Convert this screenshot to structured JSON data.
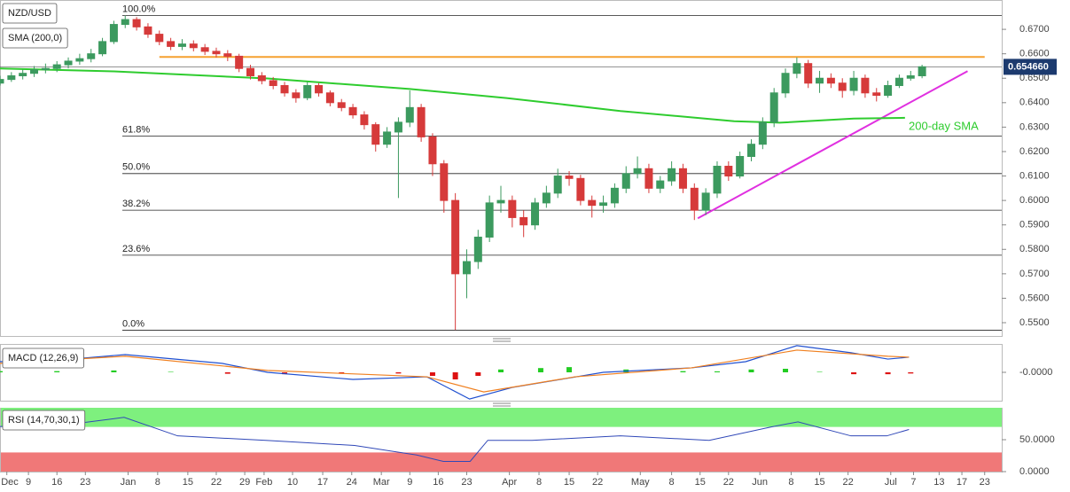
{
  "chart_data": [
    {
      "type": "candlestick",
      "title": "NZD/USD",
      "indicator_label": "SMA (200,0)",
      "up_color": "#3c9a5f",
      "down_color": "#d63a3a",
      "x": [
        0,
        2,
        4,
        6,
        8,
        10,
        12,
        14,
        16,
        18,
        20,
        22,
        24,
        26,
        28,
        30,
        32,
        34,
        36,
        38,
        40,
        42,
        44,
        46,
        48,
        50,
        52,
        54,
        56,
        58,
        60,
        62,
        64,
        66,
        68,
        70,
        72,
        74,
        76,
        78,
        80,
        82,
        84,
        86,
        88,
        90,
        92,
        94,
        96,
        98,
        100,
        102,
        104,
        106,
        108,
        110,
        112,
        114,
        116,
        118,
        120,
        122,
        124,
        126,
        128,
        130,
        132,
        134,
        136,
        138,
        140,
        142,
        144,
        146,
        148,
        150,
        152,
        154,
        156,
        158,
        160,
        162
      ],
      "open": [
        0.648,
        0.6495,
        0.651,
        0.652,
        0.6535,
        0.654,
        0.6555,
        0.657,
        0.658,
        0.66,
        0.665,
        0.672,
        0.674,
        0.671,
        0.668,
        0.665,
        0.663,
        0.664,
        0.6625,
        0.661,
        0.66,
        0.659,
        0.654,
        0.651,
        0.649,
        0.647,
        0.644,
        0.642,
        0.647,
        0.644,
        0.64,
        0.638,
        0.635,
        0.631,
        0.623,
        0.628,
        0.632,
        0.638,
        0.626,
        0.615,
        0.6,
        0.57,
        0.575,
        0.585,
        0.599,
        0.6,
        0.593,
        0.59,
        0.599,
        0.603,
        0.61,
        0.609,
        0.6,
        0.598,
        0.599,
        0.605,
        0.611,
        0.613,
        0.605,
        0.608,
        0.613,
        0.605,
        0.596,
        0.603,
        0.614,
        0.61,
        0.618,
        0.623,
        0.632,
        0.644,
        0.652,
        0.656,
        0.648,
        0.65,
        0.648,
        0.645,
        0.65,
        0.644,
        0.643,
        0.647,
        0.65,
        0.651
      ],
      "high": [
        0.651,
        0.6525,
        0.6535,
        0.655,
        0.656,
        0.657,
        0.6585,
        0.66,
        0.662,
        0.6665,
        0.6735,
        0.6756,
        0.675,
        0.6725,
        0.6695,
        0.6665,
        0.666,
        0.6655,
        0.664,
        0.6625,
        0.6615,
        0.66,
        0.6555,
        0.6525,
        0.6505,
        0.6485,
        0.6455,
        0.6485,
        0.648,
        0.645,
        0.6415,
        0.6395,
        0.6365,
        0.632,
        0.63,
        0.634,
        0.645,
        0.6395,
        0.6275,
        0.6165,
        0.603,
        0.58,
        0.588,
        0.602,
        0.606,
        0.602,
        0.596,
        0.601,
        0.606,
        0.613,
        0.612,
        0.6105,
        0.602,
        0.602,
        0.607,
        0.614,
        0.618,
        0.615,
        0.61,
        0.616,
        0.615,
        0.607,
        0.605,
        0.616,
        0.616,
        0.62,
        0.625,
        0.634,
        0.646,
        0.654,
        0.6585,
        0.6575,
        0.653,
        0.652,
        0.65,
        0.653,
        0.6515,
        0.646,
        0.649,
        0.6515,
        0.653,
        0.6555
      ],
      "low": [
        0.647,
        0.6485,
        0.6495,
        0.6505,
        0.652,
        0.6525,
        0.654,
        0.6555,
        0.6565,
        0.659,
        0.664,
        0.6705,
        0.6695,
        0.6665,
        0.6635,
        0.6615,
        0.6615,
        0.661,
        0.6595,
        0.6585,
        0.657,
        0.6525,
        0.6495,
        0.6475,
        0.6455,
        0.6425,
        0.64,
        0.641,
        0.6425,
        0.6385,
        0.6365,
        0.6335,
        0.629,
        0.62,
        0.6215,
        0.601,
        0.63,
        0.624,
        0.61,
        0.595,
        0.547,
        0.56,
        0.572,
        0.583,
        0.595,
        0.589,
        0.585,
        0.588,
        0.597,
        0.601,
        0.606,
        0.598,
        0.593,
        0.595,
        0.597,
        0.603,
        0.609,
        0.603,
        0.603,
        0.606,
        0.603,
        0.592,
        0.594,
        0.601,
        0.608,
        0.609,
        0.616,
        0.621,
        0.63,
        0.642,
        0.65,
        0.646,
        0.644,
        0.646,
        0.642,
        0.643,
        0.642,
        0.6405,
        0.642,
        0.646,
        0.649,
        0.65
      ],
      "close": [
        0.6495,
        0.651,
        0.652,
        0.6535,
        0.654,
        0.6555,
        0.657,
        0.658,
        0.66,
        0.665,
        0.672,
        0.674,
        0.671,
        0.668,
        0.665,
        0.663,
        0.664,
        0.6625,
        0.661,
        0.66,
        0.659,
        0.654,
        0.651,
        0.649,
        0.647,
        0.644,
        0.642,
        0.647,
        0.644,
        0.64,
        0.638,
        0.635,
        0.631,
        0.623,
        0.628,
        0.632,
        0.638,
        0.626,
        0.615,
        0.6,
        0.57,
        0.575,
        0.585,
        0.599,
        0.6,
        0.593,
        0.59,
        0.599,
        0.603,
        0.61,
        0.609,
        0.6,
        0.598,
        0.599,
        0.605,
        0.611,
        0.613,
        0.605,
        0.608,
        0.613,
        0.605,
        0.596,
        0.603,
        0.614,
        0.61,
        0.618,
        0.623,
        0.632,
        0.644,
        0.652,
        0.656,
        0.648,
        0.65,
        0.648,
        0.645,
        0.65,
        0.644,
        0.643,
        0.647,
        0.65,
        0.651,
        0.6547
      ],
      "sma": {
        "name": "200-day SMA",
        "color": "#2ecc2e",
        "x": [
          0,
          20,
          47,
          72,
          89,
          109,
          129,
          137,
          150,
          159
        ],
        "values": [
          0.654,
          0.6528,
          0.6499,
          0.6456,
          0.6419,
          0.6366,
          0.6324,
          0.6318,
          0.6335,
          0.6338
        ]
      },
      "resistance": {
        "color": "#f5a030",
        "x": [
          28,
          173
        ],
        "values": [
          0.6587,
          0.6587
        ]
      },
      "trendline": {
        "color": "#e030e0",
        "x": [
          122.6,
          170
        ],
        "values": [
          0.5927,
          0.6529
        ]
      },
      "last_price": {
        "value": 0.65466,
        "label": "0.654660",
        "color": "#1c3a6e"
      },
      "fib_levels": [
        {
          "label": "100.0%",
          "value": 0.6756
        },
        {
          "label": "61.8%",
          "value": 0.6263
        },
        {
          "label": "50.0%",
          "value": 0.611
        },
        {
          "label": "38.2%",
          "value": 0.596
        },
        {
          "label": "23.6%",
          "value": 0.5776
        },
        {
          "label": "0.0%",
          "value": 0.5469
        }
      ],
      "xlim": [
        0,
        176
      ],
      "xticks": [
        {
          "value": 5,
          "label": "9"
        },
        {
          "value": 10,
          "label": "16"
        },
        {
          "value": 15,
          "label": "23"
        },
        {
          "value": 22.5,
          "label": "Jan"
        },
        {
          "value": 27.7,
          "label": "8"
        },
        {
          "value": 33,
          "label": "15"
        },
        {
          "value": 38,
          "label": "22"
        },
        {
          "value": 43,
          "label": "29"
        },
        {
          "value": 46.4,
          "label": "Feb"
        },
        {
          "value": 51.4,
          "label": "10"
        },
        {
          "value": 56.7,
          "label": "17"
        },
        {
          "value": 61.8,
          "label": "24"
        },
        {
          "value": 67,
          "label": "Mar"
        },
        {
          "value": 72,
          "label": "9"
        },
        {
          "value": 77,
          "label": "16"
        },
        {
          "value": 82,
          "label": "23"
        },
        {
          "value": 89.5,
          "label": "Apr"
        },
        {
          "value": 94.7,
          "label": "8"
        },
        {
          "value": 100,
          "label": "15"
        },
        {
          "value": 105,
          "label": "22"
        },
        {
          "value": 112.5,
          "label": "May"
        },
        {
          "value": 118,
          "label": "8"
        },
        {
          "value": 123,
          "label": "15"
        },
        {
          "value": 128,
          "label": "22"
        },
        {
          "value": 133.5,
          "label": "Jun"
        },
        {
          "value": 139,
          "label": "8"
        },
        {
          "value": 144,
          "label": "15"
        },
        {
          "value": 149,
          "label": "22"
        },
        {
          "value": 156.5,
          "label": "Jul"
        },
        {
          "value": 160.5,
          "label": "7"
        },
        {
          "value": 165,
          "label": "13"
        },
        {
          "value": 169,
          "label": "17"
        },
        {
          "value": 173,
          "label": "23"
        },
        {
          "value": 1.2,
          "label": "Dec"
        }
      ],
      "ylim": [
        0.5442,
        0.682
      ],
      "yticks": [
        {
          "value": 0.55,
          "label": "0.5500"
        },
        {
          "value": 0.56,
          "label": "0.5600"
        },
        {
          "value": 0.57,
          "label": "0.5700"
        },
        {
          "value": 0.58,
          "label": "0.5800"
        },
        {
          "value": 0.59,
          "label": "0.5900"
        },
        {
          "value": 0.6,
          "label": "0.6000"
        },
        {
          "value": 0.61,
          "label": "0.6100"
        },
        {
          "value": 0.62,
          "label": "0.6200"
        },
        {
          "value": 0.63,
          "label": "0.6300"
        },
        {
          "value": 0.64,
          "label": "0.6400"
        },
        {
          "value": 0.65,
          "label": "0.6500"
        },
        {
          "value": 0.66,
          "label": "0.6600"
        },
        {
          "value": 0.67,
          "label": "0.6700"
        }
      ],
      "grid": false
    },
    {
      "type": "macd",
      "title": "MACD (12,26,9)",
      "series": [
        {
          "color": "#2050d0",
          "x": [
            0,
            12.5,
            22,
            39,
            47,
            62,
            75,
            82.5,
            90,
            106,
            121.5,
            131,
            140,
            149.5,
            156,
            159.7
          ],
          "values": [
            0.0045,
            0.0056,
            0.0075,
            0.0038,
            0,
            -0.003,
            -0.0019,
            -0.0113,
            -0.0064,
            0,
            0.0019,
            0.0045,
            0.0113,
            0.0083,
            0.0056,
            0.0064
          ]
        },
        {
          "color": "#f08020",
          "x": [
            0,
            22,
            47,
            75,
            85,
            101,
            121.5,
            140,
            156,
            159.7
          ],
          "values": [
            0.0038,
            0.0068,
            0.0008,
            -0.0019,
            -0.0083,
            -0.0019,
            0.0019,
            0.0094,
            0.0068,
            0.0064
          ]
        }
      ],
      "histogram": {
        "positive_color": "#22cc22",
        "negative_color": "#dd1111",
        "x": [
          0,
          10,
          20,
          30,
          40,
          50,
          60,
          70,
          76,
          80,
          84,
          88,
          95,
          100,
          110,
          120,
          126,
          132,
          138,
          144,
          150,
          156,
          160
        ],
        "values": [
          0.0005,
          0.0005,
          0.0008,
          0.0002,
          -0.0006,
          -0.0008,
          -0.0006,
          -0.0005,
          -0.0015,
          -0.003,
          -0.0015,
          0.0012,
          0.0018,
          0.0022,
          0.0012,
          0.0005,
          0.0004,
          0.0012,
          0.0015,
          0.0002,
          -0.0008,
          -0.0008,
          -0.0005
        ]
      },
      "ylim": [
        -0.012,
        0.012
      ],
      "yticks": [
        {
          "value": 0,
          "label": "-0.0000"
        }
      ]
    },
    {
      "type": "rsi",
      "title": "RSI (14,70,30,1)",
      "color": "#3048b8",
      "overbought": 70,
      "oversold": 30,
      "overbought_color": "#7ef07e",
      "oversold_color": "#f07878",
      "x": [
        0,
        9.3,
        21.8,
        31.2,
        46.7,
        62.3,
        73.2,
        77.9,
        82.6,
        85.7,
        93.5,
        109,
        124.6,
        135.5,
        140.2,
        149.5,
        155.8,
        159.7
      ],
      "values": [
        70.6,
        70.6,
        85,
        56,
        49,
        41,
        26,
        16,
        16,
        49,
        49,
        56,
        49,
        70,
        78,
        56,
        56,
        66
      ],
      "ylim": [
        0,
        100
      ],
      "yticks": [
        {
          "value": 0,
          "label": "0.0000"
        },
        {
          "value": 50,
          "label": "50.0000"
        }
      ]
    }
  ]
}
